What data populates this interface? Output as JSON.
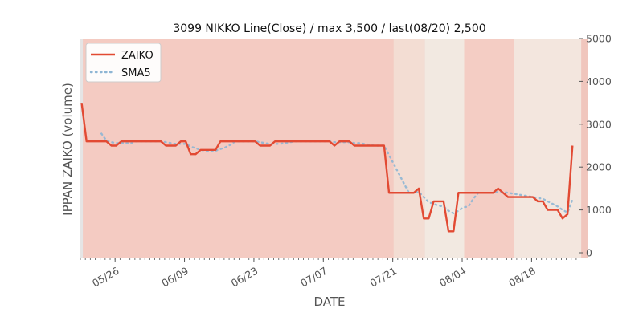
{
  "chart_data": {
    "type": "line",
    "title": "3099 NIKKO Line(Close) / max 3,500 / last(08/20) 2,500",
    "xlabel": "DATE",
    "ylabel": "IPPAN ZAIKO (volume)",
    "ylim": [
      0,
      5000
    ],
    "y_ticks": [
      0,
      1000,
      2000,
      3000,
      4000,
      5000
    ],
    "y_tick_labels": [
      "0",
      "1000",
      "2000",
      "3000",
      "4000",
      "5000"
    ],
    "y_axis_side": "right",
    "x_tick_labels": [
      "05/26",
      "06/09",
      "06/23",
      "07/07",
      "07/21",
      "08/04",
      "08/18"
    ],
    "x_tick_days": [
      7,
      21,
      35,
      49,
      63,
      77,
      91
    ],
    "legend_position": "top-left",
    "grid": false,
    "series": [
      {
        "name": "ZAIKO",
        "color": "#e24a33",
        "style": "solid",
        "values": [
          3500,
          2600,
          2600,
          2600,
          2600,
          2600,
          2500,
          2500,
          2600,
          2600,
          2600,
          2600,
          2600,
          2600,
          2600,
          2600,
          2600,
          2500,
          2500,
          2500,
          2600,
          2600,
          2300,
          2300,
          2400,
          2400,
          2400,
          2400,
          2600,
          2600,
          2600,
          2600,
          2600,
          2600,
          2600,
          2600,
          2500,
          2500,
          2500,
          2600,
          2600,
          2600,
          2600,
          2600,
          2600,
          2600,
          2600,
          2600,
          2600,
          2600,
          2600,
          2500,
          2600,
          2600,
          2600,
          2500,
          2500,
          2500,
          2500,
          2500,
          2500,
          2500,
          1400,
          1400,
          1400,
          1400,
          1400,
          1400,
          1500,
          800,
          800,
          1200,
          1200,
          1200,
          500,
          500,
          1400,
          1400,
          1400,
          1400,
          1400,
          1400,
          1400,
          1400,
          1500,
          1400,
          1300,
          1300,
          1300,
          1300,
          1300,
          1300,
          1200,
          1200,
          1000,
          1000,
          1000,
          800,
          900,
          2500
        ]
      },
      {
        "name": "SMA5",
        "color": "#8eb6d4",
        "style": "dotted",
        "values": [
          null,
          null,
          null,
          null,
          2780,
          2620,
          2580,
          2560,
          2560,
          2560,
          2560,
          2600,
          2600,
          2600,
          2600,
          2600,
          2600,
          2580,
          2560,
          2540,
          2540,
          2540,
          2480,
          2440,
          2400,
          2380,
          2360,
          2380,
          2420,
          2460,
          2520,
          2600,
          2600,
          2600,
          2600,
          2600,
          2580,
          2560,
          2540,
          2540,
          2540,
          2560,
          2580,
          2600,
          2600,
          2600,
          2600,
          2600,
          2600,
          2600,
          2600,
          2580,
          2580,
          2580,
          2580,
          2560,
          2560,
          2540,
          2520,
          2500,
          2500,
          2500,
          2280,
          2060,
          1840,
          1620,
          1400,
          1400,
          1420,
          1300,
          1180,
          1140,
          1100,
          1080,
          980,
          920,
          980,
          1060,
          1080,
          1260,
          1400,
          1400,
          1400,
          1400,
          1420,
          1420,
          1400,
          1380,
          1360,
          1340,
          1320,
          1300,
          1280,
          1260,
          1200,
          1140,
          1080,
          1000,
          940,
          1240
        ]
      }
    ]
  }
}
